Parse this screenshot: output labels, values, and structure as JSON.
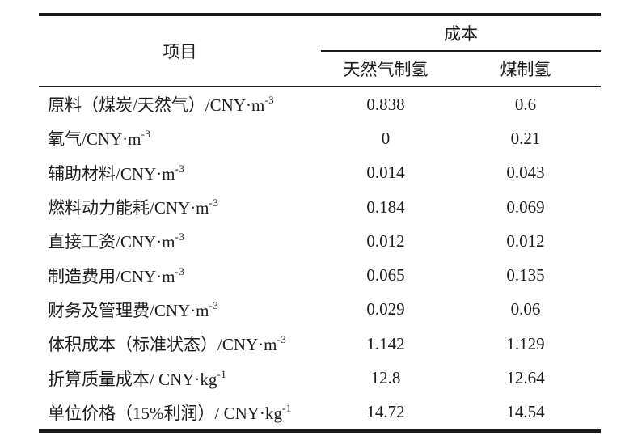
{
  "colors": {
    "background": "#ffffff",
    "ink": "#1c1c1c",
    "rule": "#1a1a1a"
  },
  "table": {
    "header": {
      "item": "项目",
      "cost_group": "成本",
      "col_natural_gas": "天然气制氢",
      "col_coal": "煤制氢"
    },
    "rows": [
      {
        "label": "原料（煤炭/天然气）/CNY·m",
        "sup": "-3",
        "natural_gas": "0.838",
        "coal": "0.6"
      },
      {
        "label": "氧气/CNY·m",
        "sup": "-3",
        "natural_gas": "0",
        "coal": "0.21"
      },
      {
        "label": "辅助材料/CNY·m",
        "sup": "-3",
        "natural_gas": "0.014",
        "coal": "0.043"
      },
      {
        "label": "燃料动力能耗/CNY·m",
        "sup": "-3",
        "natural_gas": "0.184",
        "coal": "0.069"
      },
      {
        "label": "直接工资/CNY·m",
        "sup": "-3",
        "natural_gas": "0.012",
        "coal": "0.012"
      },
      {
        "label": "制造费用/CNY·m",
        "sup": "-3",
        "natural_gas": "0.065",
        "coal": "0.135"
      },
      {
        "label": "财务及管理费/CNY·m",
        "sup": "-3",
        "natural_gas": "0.029",
        "coal": "0.06"
      },
      {
        "label": "体积成本（标准状态）/CNY·m",
        "sup": "-3",
        "natural_gas": "1.142",
        "coal": "1.129"
      },
      {
        "label": "折算质量成本/ CNY·kg",
        "sup": "-1",
        "natural_gas": "12.8",
        "coal": "12.64"
      },
      {
        "label": "单位价格（15%利润）/ CNY·kg",
        "sup": "-1",
        "natural_gas": "14.72",
        "coal": "14.54"
      }
    ]
  }
}
